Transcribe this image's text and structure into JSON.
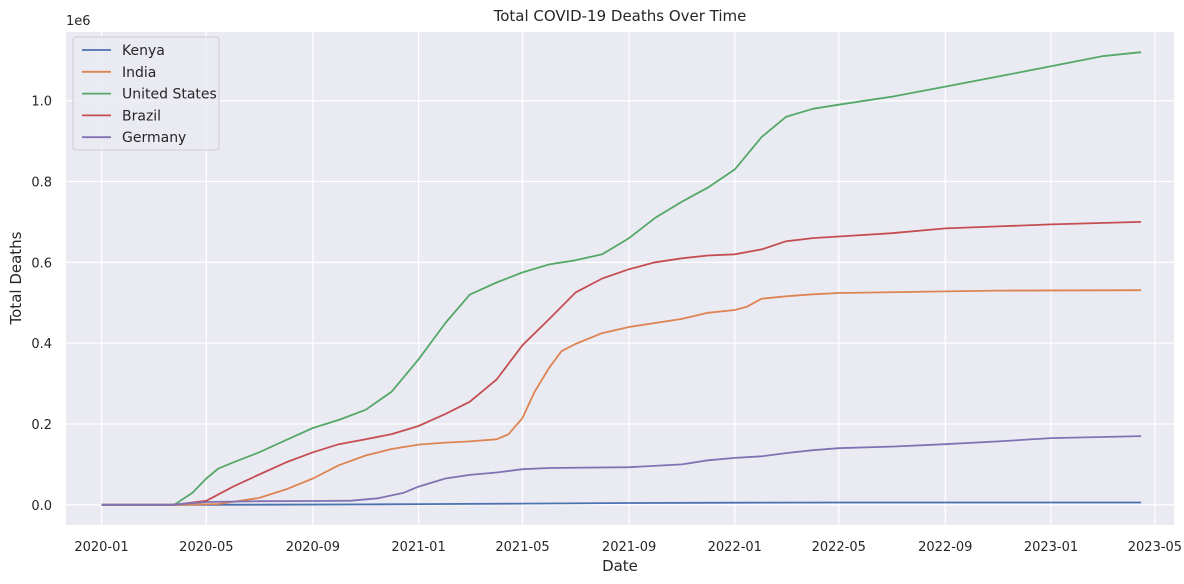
{
  "chart_data": {
    "type": "line",
    "title": "Total COVID-19 Deaths Over Time",
    "xlabel": "Date",
    "ylabel": "Total Deaths",
    "y_offset_label": "1e6",
    "y_scale_factor": 1000000,
    "xlim": [
      "2019-11-21",
      "2023-05-23"
    ],
    "ylim": [
      -0.05,
      1.17
    ],
    "x_ticks": [
      "2020-01",
      "2020-05",
      "2020-09",
      "2021-01",
      "2021-05",
      "2021-09",
      "2022-01",
      "2022-05",
      "2022-09",
      "2023-01",
      "2023-05"
    ],
    "y_ticks": [
      "0.0",
      "0.2",
      "0.4",
      "0.6",
      "0.8",
      "1.0"
    ],
    "grid": true,
    "legend_position": "top-left",
    "background_color": "#eaeaf2",
    "series": [
      {
        "name": "Kenya",
        "color": "#4c72b0",
        "points": [
          [
            "2020-01-01",
            0
          ],
          [
            "2020-04-01",
            0
          ],
          [
            "2020-07-01",
            0.0002
          ],
          [
            "2020-11-01",
            0.0009
          ],
          [
            "2021-01-01",
            0.0017
          ],
          [
            "2021-05-01",
            0.0029
          ],
          [
            "2021-09-01",
            0.0045
          ],
          [
            "2022-01-01",
            0.0053
          ],
          [
            "2022-05-01",
            0.0056
          ],
          [
            "2022-09-01",
            0.0057
          ],
          [
            "2023-01-01",
            0.0057
          ],
          [
            "2023-04-15",
            0.0057
          ]
        ]
      },
      {
        "name": "India",
        "color": "#dd8452",
        "points": [
          [
            "2020-01-01",
            0
          ],
          [
            "2020-04-01",
            0
          ],
          [
            "2020-05-15",
            0.002
          ],
          [
            "2020-07-01",
            0.017
          ],
          [
            "2020-08-01",
            0.038
          ],
          [
            "2020-09-01",
            0.065
          ],
          [
            "2020-10-01",
            0.098
          ],
          [
            "2020-11-01",
            0.122
          ],
          [
            "2020-12-01",
            0.138
          ],
          [
            "2021-01-01",
            0.149
          ],
          [
            "2021-02-01",
            0.154
          ],
          [
            "2021-03-01",
            0.157
          ],
          [
            "2021-04-01",
            0.162
          ],
          [
            "2021-04-15",
            0.175
          ],
          [
            "2021-05-01",
            0.215
          ],
          [
            "2021-05-15",
            0.28
          ],
          [
            "2021-06-01",
            0.34
          ],
          [
            "2021-06-15",
            0.38
          ],
          [
            "2021-07-01",
            0.398
          ],
          [
            "2021-08-01",
            0.425
          ],
          [
            "2021-09-01",
            0.44
          ],
          [
            "2021-10-01",
            0.45
          ],
          [
            "2021-11-01",
            0.46
          ],
          [
            "2021-12-01",
            0.475
          ],
          [
            "2022-01-01",
            0.482
          ],
          [
            "2022-01-15",
            0.49
          ],
          [
            "2022-02-01",
            0.51
          ],
          [
            "2022-03-01",
            0.516
          ],
          [
            "2022-04-01",
            0.521
          ],
          [
            "2022-05-01",
            0.524
          ],
          [
            "2022-09-01",
            0.528
          ],
          [
            "2022-11-01",
            0.53
          ],
          [
            "2023-04-15",
            0.531
          ]
        ]
      },
      {
        "name": "United States",
        "color": "#55a868",
        "points": [
          [
            "2020-01-01",
            0
          ],
          [
            "2020-03-25",
            0
          ],
          [
            "2020-04-15",
            0.03
          ],
          [
            "2020-05-01",
            0.065
          ],
          [
            "2020-05-15",
            0.09
          ],
          [
            "2020-06-01",
            0.105
          ],
          [
            "2020-07-01",
            0.13
          ],
          [
            "2020-08-01",
            0.16
          ],
          [
            "2020-09-01",
            0.19
          ],
          [
            "2020-10-01",
            0.21
          ],
          [
            "2020-11-01",
            0.235
          ],
          [
            "2020-12-01",
            0.28
          ],
          [
            "2021-01-01",
            0.36
          ],
          [
            "2021-02-01",
            0.45
          ],
          [
            "2021-03-01",
            0.52
          ],
          [
            "2021-04-01",
            0.55
          ],
          [
            "2021-05-01",
            0.575
          ],
          [
            "2021-06-01",
            0.595
          ],
          [
            "2021-07-01",
            0.605
          ],
          [
            "2021-08-01",
            0.62
          ],
          [
            "2021-09-01",
            0.66
          ],
          [
            "2021-10-01",
            0.71
          ],
          [
            "2021-11-01",
            0.75
          ],
          [
            "2021-12-01",
            0.785
          ],
          [
            "2022-01-01",
            0.83
          ],
          [
            "2022-02-01",
            0.91
          ],
          [
            "2022-03-01",
            0.96
          ],
          [
            "2022-04-01",
            0.98
          ],
          [
            "2022-05-01",
            0.99
          ],
          [
            "2022-07-01",
            1.01
          ],
          [
            "2022-09-01",
            1.035
          ],
          [
            "2022-11-01",
            1.06
          ],
          [
            "2023-01-01",
            1.085
          ],
          [
            "2023-03-01",
            1.11
          ],
          [
            "2023-04-15",
            1.12
          ]
        ]
      },
      {
        "name": "Brazil",
        "color": "#c44e52",
        "points": [
          [
            "2020-01-01",
            0
          ],
          [
            "2020-03-25",
            0
          ],
          [
            "2020-05-01",
            0.01
          ],
          [
            "2020-06-01",
            0.045
          ],
          [
            "2020-07-01",
            0.075
          ],
          [
            "2020-08-01",
            0.105
          ],
          [
            "2020-09-01",
            0.13
          ],
          [
            "2020-10-01",
            0.15
          ],
          [
            "2020-11-01",
            0.162
          ],
          [
            "2020-12-01",
            0.175
          ],
          [
            "2021-01-01",
            0.195
          ],
          [
            "2021-02-01",
            0.225
          ],
          [
            "2021-03-01",
            0.255
          ],
          [
            "2021-04-01",
            0.31
          ],
          [
            "2021-05-01",
            0.395
          ],
          [
            "2021-06-01",
            0.46
          ],
          [
            "2021-07-01",
            0.525
          ],
          [
            "2021-08-01",
            0.56
          ],
          [
            "2021-09-01",
            0.583
          ],
          [
            "2021-10-01",
            0.6
          ],
          [
            "2021-11-01",
            0.61
          ],
          [
            "2021-12-01",
            0.617
          ],
          [
            "2022-01-01",
            0.62
          ],
          [
            "2022-02-01",
            0.632
          ],
          [
            "2022-03-01",
            0.652
          ],
          [
            "2022-04-01",
            0.66
          ],
          [
            "2022-05-01",
            0.664
          ],
          [
            "2022-07-01",
            0.672
          ],
          [
            "2022-09-01",
            0.684
          ],
          [
            "2022-11-01",
            0.689
          ],
          [
            "2023-01-01",
            0.694
          ],
          [
            "2023-04-15",
            0.7
          ]
        ]
      },
      {
        "name": "Germany",
        "color": "#8172b3",
        "points": [
          [
            "2020-01-01",
            0
          ],
          [
            "2020-03-20",
            0
          ],
          [
            "2020-05-01",
            0.007
          ],
          [
            "2020-07-01",
            0.009
          ],
          [
            "2020-09-01",
            0.0095
          ],
          [
            "2020-10-15",
            0.0102
          ],
          [
            "2020-11-15",
            0.016
          ],
          [
            "2020-12-15",
            0.03
          ],
          [
            "2021-01-01",
            0.045
          ],
          [
            "2021-02-01",
            0.065
          ],
          [
            "2021-03-01",
            0.074
          ],
          [
            "2021-04-01",
            0.08
          ],
          [
            "2021-05-01",
            0.088
          ],
          [
            "2021-06-01",
            0.091
          ],
          [
            "2021-09-01",
            0.093
          ],
          [
            "2021-11-01",
            0.1
          ],
          [
            "2021-12-01",
            0.11
          ],
          [
            "2022-01-01",
            0.116
          ],
          [
            "2022-02-01",
            0.12
          ],
          [
            "2022-03-01",
            0.128
          ],
          [
            "2022-04-01",
            0.135
          ],
          [
            "2022-05-01",
            0.14
          ],
          [
            "2022-07-01",
            0.144
          ],
          [
            "2022-09-01",
            0.15
          ],
          [
            "2022-11-01",
            0.157
          ],
          [
            "2023-01-01",
            0.165
          ],
          [
            "2023-04-15",
            0.17
          ]
        ]
      }
    ]
  }
}
